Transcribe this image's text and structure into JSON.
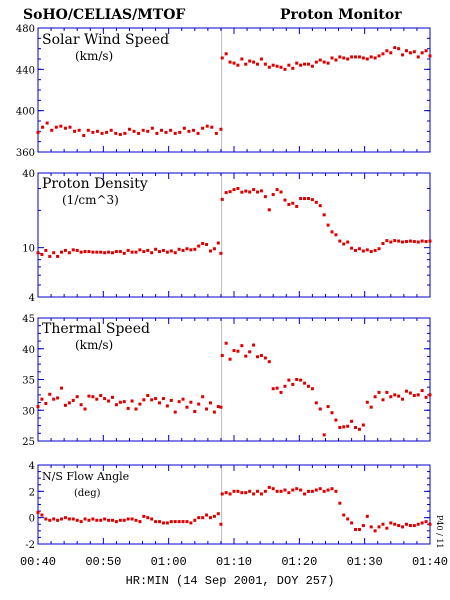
{
  "header": {
    "left_title": "SoHO/CELIAS/MTOF",
    "right_title": "Proton Monitor"
  },
  "x_axis": {
    "label": "HR:MIN (14 Sep 2001, DOY 257)",
    "ticks": [
      "00:40",
      "00:50",
      "01:00",
      "01:10",
      "01:20",
      "01:30",
      "01:40"
    ],
    "range_minutes": [
      40,
      100
    ]
  },
  "side_note": "P40 / 11",
  "colors": {
    "frame": "#0000cc",
    "points": "#dd0000",
    "event_line": "#bbbbbb",
    "text": "#000000"
  },
  "chart_data": [
    {
      "type": "scatter",
      "title": "Solar Wind Speed",
      "unit": "(km/s)",
      "scale": "linear",
      "ylim": [
        360,
        480
      ],
      "yticks": [
        "360",
        "400",
        "440",
        "480"
      ],
      "x": [
        40.0,
        40.7,
        41.4,
        42.1,
        42.8,
        43.5,
        44.2,
        44.9,
        45.6,
        46.3,
        47.0,
        47.7,
        48.4,
        49.1,
        49.8,
        50.5,
        51.2,
        51.9,
        52.6,
        53.3,
        54.0,
        54.7,
        55.4,
        56.1,
        56.8,
        57.5,
        58.2,
        58.9,
        59.6,
        60.3,
        61.0,
        61.7,
        62.4,
        63.1,
        63.8,
        64.5,
        65.2,
        65.9,
        66.6,
        67.3,
        68.0,
        68.2,
        68.8,
        69.4,
        70.0,
        70.6,
        71.2,
        71.8,
        72.4,
        73.0,
        73.6,
        74.2,
        74.8,
        75.4,
        76.0,
        76.6,
        77.2,
        77.8,
        78.4,
        79.0,
        79.6,
        80.2,
        80.8,
        81.4,
        82.0,
        82.6,
        83.2,
        83.8,
        84.4,
        85.0,
        85.6,
        86.2,
        86.8,
        87.4,
        88.0,
        88.6,
        89.2,
        89.8,
        90.4,
        91.0,
        91.6,
        92.2,
        92.8,
        93.4,
        94.0,
        94.6,
        95.2,
        95.8,
        96.4,
        97.0,
        97.6,
        98.2,
        98.8,
        99.4,
        100.0
      ],
      "values": [
        379,
        384,
        388,
        381,
        384,
        385,
        383,
        384,
        380,
        381,
        376,
        381,
        379,
        380,
        378,
        379,
        381,
        378,
        377,
        378,
        382,
        380,
        378,
        381,
        380,
        383,
        378,
        381,
        379,
        381,
        378,
        379,
        383,
        380,
        381,
        378,
        383,
        385,
        384,
        378,
        382,
        451,
        455,
        447,
        446,
        444,
        450,
        445,
        448,
        447,
        445,
        450,
        445,
        442,
        444,
        443,
        442,
        440,
        444,
        441,
        446,
        444,
        445,
        445,
        443,
        447,
        449,
        447,
        446,
        451,
        449,
        452,
        451,
        450,
        452,
        452,
        452,
        451,
        450,
        452,
        451,
        453,
        455,
        458,
        456,
        461,
        460,
        454,
        458,
        456,
        457,
        452,
        456,
        458,
        453
      ]
    },
    {
      "type": "scatter",
      "title": "Proton Density",
      "unit": "(1/cm^3)",
      "scale": "log",
      "ylim": [
        4,
        40
      ],
      "yticks": [
        "4",
        "10",
        "40"
      ],
      "x": [
        40.0,
        40.6,
        41.2,
        41.8,
        42.4,
        43.0,
        43.6,
        44.2,
        44.8,
        45.4,
        46.0,
        46.6,
        47.2,
        47.8,
        48.4,
        49.0,
        49.6,
        50.2,
        50.8,
        51.4,
        52.0,
        52.6,
        53.2,
        53.8,
        54.4,
        55.0,
        55.6,
        56.2,
        56.8,
        57.4,
        58.0,
        58.6,
        59.2,
        59.8,
        60.4,
        61.0,
        61.6,
        62.2,
        62.8,
        63.4,
        64.0,
        64.6,
        65.2,
        65.8,
        66.4,
        67.0,
        67.6,
        68.0,
        68.2,
        68.8,
        69.4,
        70.0,
        70.6,
        71.2,
        71.8,
        72.4,
        73.0,
        73.6,
        74.2,
        74.8,
        75.4,
        76.0,
        76.6,
        77.2,
        77.8,
        78.4,
        79.0,
        79.6,
        80.2,
        80.8,
        81.4,
        82.0,
        82.6,
        83.2,
        83.8,
        84.4,
        85.0,
        85.6,
        86.2,
        86.8,
        87.4,
        88.0,
        88.6,
        89.2,
        89.8,
        90.4,
        91.0,
        91.6,
        92.2,
        92.8,
        93.4,
        94.0,
        94.6,
        95.2,
        95.8,
        96.4,
        97.0,
        97.6,
        98.2,
        98.8,
        99.4,
        100.0
      ],
      "values": [
        9.1,
        8.8,
        9.5,
        8.5,
        9.1,
        8.5,
        9.2,
        9.5,
        9.1,
        9.6,
        9.5,
        9.2,
        9.3,
        9.3,
        9.2,
        9.2,
        9.2,
        9.1,
        9.2,
        9.1,
        9.3,
        9.3,
        9.0,
        9.5,
        9.2,
        9.2,
        9.6,
        9.3,
        9.5,
        9.1,
        9.7,
        9.3,
        9.5,
        9.2,
        9.4,
        9.1,
        9.7,
        9.5,
        9.8,
        9.6,
        9.7,
        10.3,
        10.8,
        10.6,
        9.4,
        9.8,
        10.9,
        9.0,
        24.5,
        27.8,
        28.3,
        29.4,
        30.0,
        28.0,
        28.6,
        28.1,
        29.4,
        28.1,
        28.7,
        25.8,
        20.2,
        26.8,
        29.4,
        28.1,
        24.2,
        22.3,
        22.8,
        21.5,
        24.9,
        24.9,
        24.9,
        24.4,
        23.2,
        21.8,
        18.4,
        15.2,
        13.4,
        12.7,
        11.3,
        10.7,
        11.1,
        9.9,
        9.5,
        9.8,
        9.4,
        9.6,
        9.3,
        9.5,
        9.8,
        10.8,
        11.4,
        11.1,
        11.4,
        11.3,
        11.1,
        11.2,
        11.3,
        11.2,
        11.1,
        11.3,
        11.2,
        11.3
      ]
    },
    {
      "type": "scatter",
      "title": "Thermal Speed",
      "unit": "(km/s)",
      "scale": "linear",
      "ylim": [
        25,
        45
      ],
      "yticks": [
        "25",
        "30",
        "35",
        "40",
        "45"
      ],
      "x": [
        40.0,
        40.6,
        41.2,
        41.8,
        42.4,
        43.0,
        43.6,
        44.2,
        44.8,
        45.4,
        46.0,
        46.6,
        47.2,
        47.8,
        48.4,
        49.0,
        49.6,
        50.2,
        50.8,
        51.4,
        52.0,
        52.6,
        53.2,
        53.8,
        54.4,
        55.0,
        55.6,
        56.2,
        56.8,
        57.4,
        58.0,
        58.6,
        59.2,
        59.8,
        60.4,
        61.0,
        61.6,
        62.2,
        62.8,
        63.4,
        64.0,
        64.6,
        65.2,
        65.8,
        66.4,
        67.0,
        67.6,
        68.0,
        68.2,
        68.8,
        69.4,
        70.0,
        70.6,
        71.2,
        71.8,
        72.4,
        73.0,
        73.6,
        74.2,
        74.8,
        75.4,
        76.0,
        76.6,
        77.2,
        77.8,
        78.4,
        79.0,
        79.6,
        80.2,
        80.8,
        81.4,
        82.0,
        82.6,
        83.2,
        83.8,
        84.4,
        85.0,
        85.6,
        86.2,
        86.8,
        87.4,
        88.0,
        88.6,
        89.2,
        89.8,
        90.4,
        91.0,
        91.6,
        92.2,
        92.8,
        93.4,
        94.0,
        94.6,
        95.2,
        95.8,
        96.4,
        97.0,
        97.6,
        98.2,
        98.8,
        99.4,
        100.0
      ],
      "values": [
        30.6,
        31.8,
        31.1,
        32.6,
        31.8,
        32.0,
        33.6,
        30.8,
        31.2,
        31.6,
        32.2,
        30.9,
        30.2,
        32.3,
        32.2,
        31.8,
        32.4,
        31.9,
        31.5,
        32.1,
        30.9,
        31.3,
        31.4,
        30.3,
        31.5,
        30.2,
        31.0,
        31.7,
        32.4,
        31.7,
        31.9,
        31.2,
        31.9,
        30.7,
        31.6,
        29.7,
        31.4,
        31.8,
        30.5,
        31.3,
        29.8,
        31.0,
        32.2,
        30.2,
        31.2,
        29.7,
        30.6,
        30.5,
        38.9,
        40.9,
        38.3,
        39.7,
        39.6,
        40.5,
        38.8,
        39.5,
        40.6,
        38.7,
        38.9,
        38.5,
        37.9,
        33.5,
        33.6,
        32.9,
        33.9,
        34.9,
        34.2,
        35.0,
        34.9,
        34.4,
        33.9,
        33.5,
        31.2,
        30.2,
        26.0,
        30.6,
        29.6,
        28.4,
        27.2,
        27.3,
        27.4,
        28.2,
        27.2,
        26.9,
        27.6,
        31.3,
        30.5,
        32.2,
        32.9,
        31.7,
        32.9,
        32.2,
        32.5,
        32.3,
        31.8,
        33.1,
        32.8,
        32.4,
        32.5,
        33.2,
        32.1,
        32.5
      ]
    },
    {
      "type": "scatter",
      "title": "N/S Flow Angle",
      "unit": "(deg)",
      "scale": "linear",
      "ylim": [
        -2,
        4
      ],
      "yticks": [
        "-2",
        "0",
        "2",
        "4"
      ],
      "x": [
        40.0,
        40.6,
        41.2,
        41.8,
        42.4,
        43.0,
        43.6,
        44.2,
        44.8,
        45.4,
        46.0,
        46.6,
        47.2,
        47.8,
        48.4,
        49.0,
        49.6,
        50.2,
        50.8,
        51.4,
        52.0,
        52.6,
        53.2,
        53.8,
        54.4,
        55.0,
        55.6,
        56.2,
        56.8,
        57.4,
        58.0,
        58.6,
        59.2,
        59.8,
        60.4,
        61.0,
        61.6,
        62.2,
        62.8,
        63.4,
        64.0,
        64.6,
        65.2,
        65.8,
        66.4,
        67.0,
        67.6,
        68.0,
        68.2,
        68.8,
        69.4,
        70.0,
        70.6,
        71.2,
        71.8,
        72.4,
        73.0,
        73.6,
        74.2,
        74.8,
        75.4,
        76.0,
        76.6,
        77.2,
        77.8,
        78.4,
        79.0,
        79.6,
        80.2,
        80.8,
        81.4,
        82.0,
        82.6,
        83.2,
        83.8,
        84.4,
        85.0,
        85.6,
        86.2,
        86.8,
        87.4,
        88.0,
        88.6,
        89.2,
        89.8,
        90.4,
        91.0,
        91.6,
        92.2,
        92.8,
        93.4,
        94.0,
        94.6,
        95.2,
        95.8,
        96.4,
        97.0,
        97.6,
        98.2,
        98.8,
        99.4,
        100.0
      ],
      "values": [
        0.4,
        0.2,
        -0.1,
        -0.2,
        -0.1,
        -0.2,
        -0.1,
        0.0,
        -0.1,
        -0.1,
        -0.2,
        -0.3,
        -0.1,
        -0.2,
        -0.1,
        -0.2,
        -0.2,
        -0.1,
        -0.2,
        -0.2,
        -0.3,
        -0.2,
        -0.2,
        -0.1,
        -0.1,
        -0.2,
        -0.3,
        0.1,
        0.0,
        -0.1,
        -0.3,
        -0.3,
        -0.4,
        -0.4,
        -0.3,
        -0.3,
        -0.3,
        -0.3,
        -0.3,
        -0.4,
        -0.2,
        0.0,
        0.0,
        0.2,
        0.0,
        0.1,
        0.3,
        -0.5,
        1.8,
        1.9,
        1.8,
        2.0,
        2.0,
        1.9,
        1.9,
        2.0,
        1.8,
        2.0,
        1.8,
        2.0,
        2.3,
        2.2,
        2.0,
        2.0,
        2.1,
        1.9,
        2.1,
        2.2,
        2.1,
        1.8,
        2.0,
        2.0,
        2.1,
        2.2,
        2.0,
        2.1,
        2.2,
        2.0,
        1.1,
        0.2,
        -0.1,
        -0.4,
        -0.9,
        -0.9,
        -0.6,
        0.1,
        -0.7,
        -1.0,
        -0.7,
        -0.5,
        -0.8,
        -0.4,
        -0.5,
        -0.6,
        -0.7,
        -0.5,
        -0.6,
        -0.6,
        -0.5,
        -0.4,
        -0.3,
        -0.5
      ]
    }
  ]
}
